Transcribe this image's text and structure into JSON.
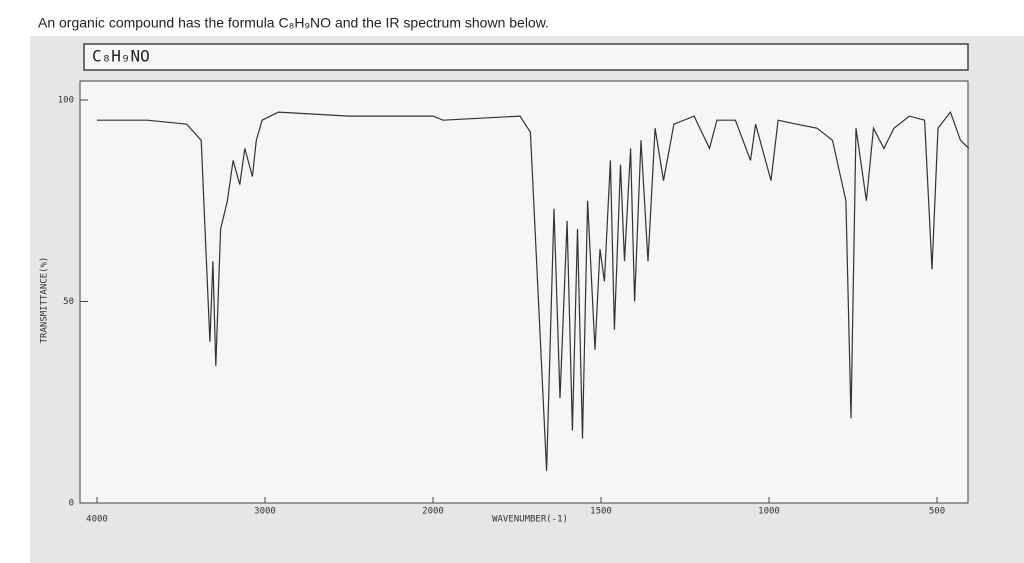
{
  "question": "An organic compound has the formula C₈H₉NO and the IR spectrum shown below.",
  "chart_data": {
    "type": "line",
    "title": "C₈H₉NO",
    "xlabel": "WAVENUMBER(-1)",
    "ylabel": "TRANSMITTANCE(%)",
    "xlim": [
      4000,
      405
    ],
    "xticks": [
      4000,
      3000,
      2000,
      1500,
      1000,
      500
    ],
    "ylim": [
      0,
      100
    ],
    "yticks": [
      0,
      50,
      100
    ],
    "color": "#333333",
    "series": [
      {
        "name": "IR spectrum",
        "color": "#333333",
        "x": [
          4000,
          3700,
          3466,
          3380,
          3328,
          3310,
          3293,
          3264,
          3224,
          3190,
          3150,
          3120,
          3075,
          3052,
          3017,
          2920,
          2500,
          2100,
          2000,
          1970,
          1741,
          1710,
          1686,
          1662,
          1640,
          1622,
          1601,
          1585,
          1570,
          1555,
          1540,
          1518,
          1503,
          1490,
          1472,
          1460,
          1442,
          1430,
          1412,
          1400,
          1381,
          1360,
          1339,
          1314,
          1283,
          1223,
          1177,
          1155,
          1100,
          1055,
          1040,
          994,
          973,
          918,
          857,
          811,
          771,
          756,
          741,
          710,
          689,
          658,
          628,
          582,
          537,
          515,
          497,
          460,
          430,
          405
        ],
        "values": [
          95,
          95,
          94,
          90,
          40,
          60,
          34,
          68,
          75,
          85,
          79,
          88,
          81,
          90,
          95,
          97,
          96,
          96,
          96,
          95,
          96,
          92,
          50,
          8,
          73,
          26,
          70,
          18,
          68,
          16,
          75,
          38,
          63,
          55,
          85,
          43,
          84,
          60,
          88,
          50,
          90,
          60,
          93,
          80,
          94,
          96,
          88,
          95,
          95,
          85,
          94,
          80,
          95,
          94,
          93,
          90,
          75,
          21,
          93,
          75,
          93,
          88,
          93,
          96,
          95,
          58,
          93,
          97,
          90,
          88
        ]
      }
    ]
  }
}
